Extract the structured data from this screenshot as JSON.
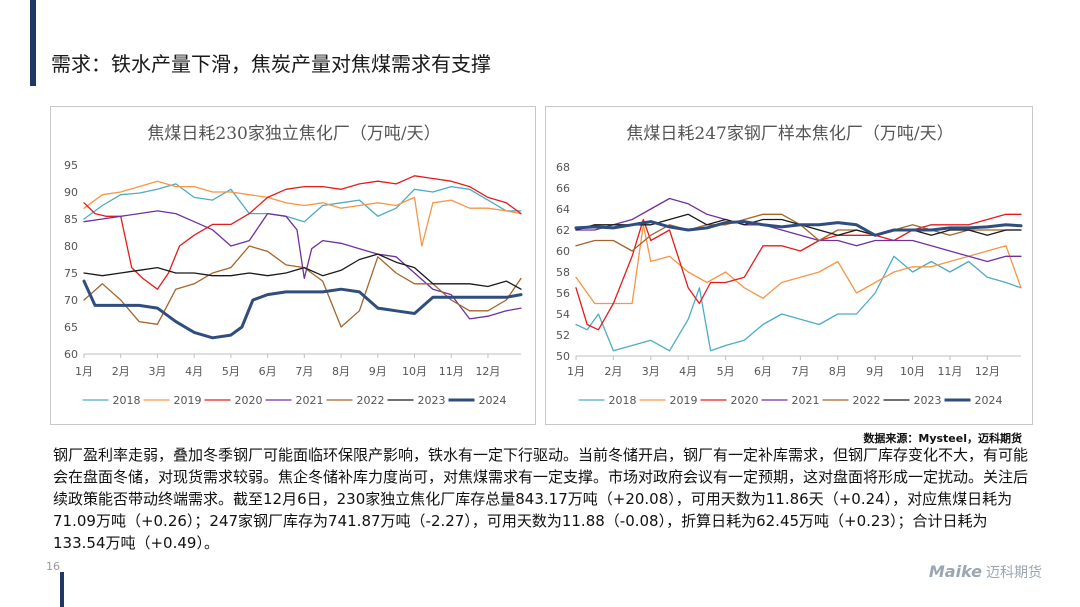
{
  "page": {
    "title": "需求：铁水产量下滑，焦炭产量对焦煤需求有支撑",
    "source": "数据来源：Mysteel，迈科期货",
    "body": "钢厂盈利率走弱，叠加冬季钢厂可能面临环保限产影响，铁水有一定下行驱动。当前冬储开启，钢厂有一定补库需求，但钢厂库存变化不大，有可能会在盘面冬储，对现货需求较弱。焦企冬储补库力度尚可，对焦煤需求有一定支撑。市场对政府会议有一定预期，这对盘面将形成一定扰动。关注后续政策能否带动终端需求。截至12月6日，230家独立焦化厂库存总量843.17万吨（+20.08），可用天数为11.86天（+0.24），对应焦煤日耗为71.09万吨（+0.26）；247家钢厂库存为741.87万吨（-2.27），可用天数为11.88（-0.08），折算日耗为62.45万吨（+0.23）；合计日耗为133.54万吨（+0.49）。",
    "page_number": "16",
    "logo_text": "Maike",
    "logo_cn": "迈科期货"
  },
  "chart_data": [
    {
      "type": "line",
      "title": "焦煤日耗230家独立焦化厂（万吨/天）",
      "xlabel": "",
      "ylabel": "",
      "x_tick_labels": [
        "1月",
        "2月",
        "3月",
        "4月",
        "5月",
        "6月",
        "7月",
        "8月",
        "9月",
        "10月",
        "11月",
        "12月"
      ],
      "xlim": [
        1,
        12.9
      ],
      "ylim": [
        60,
        95
      ],
      "y_ticks": [
        60,
        65,
        70,
        75,
        80,
        85,
        90,
        95
      ],
      "legend": "bottom",
      "series": [
        {
          "name": "2018",
          "color": "#4bacc6",
          "width": 1.3,
          "x": [
            1,
            1.5,
            2,
            2.5,
            3,
            3.5,
            4,
            4.5,
            5,
            5.5,
            6,
            6.5,
            7,
            7.5,
            8,
            8.5,
            9,
            9.5,
            10,
            10.5,
            11,
            11.5,
            12,
            12.5,
            12.9
          ],
          "values": [
            85,
            87.5,
            89.5,
            89.8,
            90.5,
            91.5,
            89,
            88.5,
            90.5,
            86,
            86,
            85.5,
            84.5,
            87.5,
            88,
            88.5,
            85.5,
            87,
            90.5,
            90,
            91,
            90.5,
            88.5,
            86.5,
            86.5
          ]
        },
        {
          "name": "2019",
          "color": "#f79646",
          "width": 1.3,
          "x": [
            1,
            1.5,
            2,
            2.5,
            3,
            3.5,
            4,
            4.5,
            5,
            5.5,
            6,
            6.5,
            7,
            7.5,
            8,
            8.5,
            9,
            9.5,
            10,
            10.2,
            10.5,
            11,
            11.5,
            12,
            12.5,
            12.9
          ],
          "values": [
            87,
            89.5,
            90,
            91,
            92,
            91,
            91,
            90,
            90,
            89.5,
            89,
            88,
            87.5,
            88,
            87,
            87.5,
            88,
            87.5,
            89,
            80,
            88,
            88.5,
            87,
            87,
            86.5,
            86
          ]
        },
        {
          "name": "2020",
          "color": "#e51c1c",
          "width": 1.3,
          "x": [
            1,
            1.3,
            1.6,
            2,
            2.3,
            2.6,
            3,
            3.3,
            3.6,
            4,
            4.5,
            5,
            5.5,
            6,
            6.5,
            7,
            7.5,
            8,
            8.5,
            9,
            9.5,
            10,
            10.5,
            11,
            11.5,
            12,
            12.5,
            12.9
          ],
          "values": [
            88,
            86,
            85.5,
            85.5,
            76,
            74,
            72,
            75,
            80,
            82,
            84,
            84,
            86,
            89,
            90.5,
            91,
            91,
            90.5,
            91.5,
            92,
            91.5,
            93,
            92.5,
            92,
            91,
            89,
            88,
            86
          ]
        },
        {
          "name": "2021",
          "color": "#7030a0",
          "width": 1.3,
          "x": [
            1,
            1.5,
            2,
            2.5,
            3,
            3.5,
            4,
            4.5,
            5,
            5.5,
            6,
            6.5,
            6.8,
            7,
            7.2,
            7.5,
            8,
            8.5,
            9,
            9.5,
            10,
            10.5,
            11,
            11.5,
            12,
            12.5,
            12.9
          ],
          "values": [
            84.5,
            85,
            85.5,
            86,
            86.5,
            86,
            84.5,
            83,
            80,
            81,
            86,
            85.5,
            83,
            74,
            79.5,
            81,
            80.5,
            79.5,
            78.5,
            78,
            75,
            72,
            71,
            66.5,
            67,
            68,
            68.5
          ]
        },
        {
          "name": "2022",
          "color": "#a5642a",
          "width": 1.3,
          "x": [
            1,
            1.5,
            2,
            2.5,
            3,
            3.5,
            4,
            4.5,
            5,
            5.5,
            6,
            6.5,
            7,
            7.5,
            8,
            8.5,
            9,
            9.5,
            10,
            10.5,
            11,
            11.5,
            12,
            12.5,
            12.9
          ],
          "values": [
            70,
            73,
            70,
            66,
            65.5,
            72,
            73,
            75,
            76,
            80,
            79,
            76.5,
            76,
            73.5,
            65,
            68,
            78,
            75,
            73,
            73,
            70,
            68,
            68,
            70,
            74
          ]
        },
        {
          "name": "2023",
          "color": "#1a1a1a",
          "width": 1.3,
          "x": [
            1,
            1.5,
            2,
            2.5,
            3,
            3.5,
            4,
            4.5,
            5,
            5.5,
            6,
            6.5,
            7,
            7.5,
            8,
            8.5,
            9,
            9.5,
            10,
            10.5,
            11,
            11.5,
            12,
            12.5,
            12.9
          ],
          "values": [
            75,
            74.5,
            75,
            75.5,
            76,
            75,
            75,
            74.5,
            74.5,
            75,
            74.5,
            75,
            76,
            74.5,
            75.5,
            77.5,
            78.5,
            77,
            76,
            73,
            73,
            73,
            72.5,
            73.5,
            72
          ]
        },
        {
          "name": "2024",
          "color": "#2f4e7e",
          "width": 3,
          "x": [
            1,
            1.3,
            1.6,
            2,
            2.5,
            3,
            3.5,
            4,
            4.5,
            5,
            5.3,
            5.6,
            6,
            6.5,
            7,
            7.5,
            8,
            8.5,
            9,
            9.5,
            10,
            10.5,
            11,
            11.5,
            12,
            12.5,
            12.9
          ],
          "values": [
            73.5,
            69,
            69,
            69,
            69,
            68.5,
            66,
            64,
            63,
            63.5,
            65,
            70,
            71,
            71.5,
            71.5,
            71.5,
            72,
            71.5,
            68.5,
            68,
            67.5,
            70.5,
            70.5,
            70.5,
            70.5,
            70.5,
            71
          ]
        }
      ]
    },
    {
      "type": "line",
      "title": "焦煤日耗247家钢厂样本焦化厂（万吨/天）",
      "xlabel": "",
      "ylabel": "",
      "x_tick_labels": [
        "1月",
        "2月",
        "3月",
        "4月",
        "5月",
        "6月",
        "7月",
        "8月",
        "9月",
        "10月",
        "11月",
        "12月"
      ],
      "xlim": [
        1,
        12.9
      ],
      "ylim": [
        50,
        68
      ],
      "y_ticks": [
        50,
        52,
        54,
        56,
        58,
        60,
        62,
        64,
        66,
        68
      ],
      "legend": "bottom",
      "series": [
        {
          "name": "2018",
          "color": "#4bacc6",
          "width": 1.3,
          "x": [
            1,
            1.3,
            1.6,
            2,
            2.5,
            3,
            3.5,
            4,
            4.3,
            4.6,
            5,
            5.5,
            6,
            6.5,
            7,
            7.5,
            8,
            8.5,
            9,
            9.5,
            10,
            10.5,
            11,
            11.5,
            12,
            12.5,
            12.9
          ],
          "values": [
            53,
            52.5,
            54,
            50.5,
            51,
            51.5,
            50.5,
            53.5,
            56.5,
            50.5,
            51,
            51.5,
            53,
            54,
            53.5,
            53,
            54,
            54,
            56,
            59.5,
            58,
            59,
            58,
            59,
            57.5,
            57,
            56.5
          ]
        },
        {
          "name": "2019",
          "color": "#f79646",
          "width": 1.3,
          "x": [
            1,
            1.5,
            2,
            2.5,
            2.8,
            3,
            3.5,
            4,
            4.5,
            5,
            5.5,
            6,
            6.5,
            7,
            7.5,
            8,
            8.5,
            9,
            9.5,
            10,
            10.5,
            11,
            11.5,
            12,
            12.5,
            12.9
          ],
          "values": [
            57.5,
            55,
            55,
            55,
            62.5,
            59,
            59.5,
            58,
            57,
            58,
            56.5,
            55.5,
            57,
            57.5,
            58,
            59,
            56,
            57,
            58,
            58.5,
            58.5,
            59,
            59.5,
            60,
            60.5,
            56.5
          ]
        },
        {
          "name": "2020",
          "color": "#e51c1c",
          "width": 1.3,
          "x": [
            1,
            1.3,
            1.6,
            2,
            2.5,
            2.8,
            3,
            3.5,
            4,
            4.3,
            4.6,
            5,
            5.5,
            6,
            6.5,
            7,
            7.5,
            8,
            8.5,
            9,
            9.5,
            10,
            10.5,
            11,
            11.5,
            12,
            12.5,
            12.9
          ],
          "values": [
            56.5,
            53,
            52.5,
            55,
            59.5,
            63,
            61,
            62,
            56.5,
            55,
            57,
            57,
            57.5,
            60.5,
            60.5,
            60,
            61,
            61.5,
            61.5,
            61.5,
            61,
            62,
            62.5,
            62.5,
            62.5,
            63,
            63.5,
            63.5
          ]
        },
        {
          "name": "2021",
          "color": "#7030a0",
          "width": 1.3,
          "x": [
            1,
            1.5,
            2,
            2.5,
            3,
            3.5,
            4,
            4.5,
            5,
            5.5,
            6,
            6.5,
            7,
            7.5,
            8,
            8.5,
            9,
            9.5,
            10,
            10.5,
            11,
            11.5,
            12,
            12.5,
            12.9
          ],
          "values": [
            62,
            62,
            62.5,
            63,
            64,
            65,
            64.5,
            63.5,
            63,
            62.5,
            62.5,
            62,
            61.5,
            61,
            61,
            60.5,
            61,
            61,
            61,
            60.5,
            60,
            59.5,
            59,
            59.5,
            59.5
          ]
        },
        {
          "name": "2022",
          "color": "#a5642a",
          "width": 1.3,
          "x": [
            1,
            1.5,
            2,
            2.5,
            3,
            3.5,
            4,
            4.5,
            5,
            5.5,
            6,
            6.5,
            7,
            7.5,
            8,
            8.5,
            9,
            9.5,
            10,
            10.5,
            11,
            11.5,
            12,
            12.5,
            12.9
          ],
          "values": [
            60.5,
            61,
            61,
            60,
            61.5,
            62.5,
            62,
            62.5,
            62.5,
            63,
            63.5,
            63.5,
            62.5,
            61,
            62,
            62,
            61.5,
            62,
            62.5,
            62,
            61.5,
            62,
            62,
            62,
            62
          ]
        },
        {
          "name": "2023",
          "color": "#1a1a1a",
          "width": 1.3,
          "x": [
            1,
            1.5,
            2,
            2.5,
            3,
            3.5,
            4,
            4.5,
            5,
            5.5,
            6,
            6.5,
            7,
            7.5,
            8,
            8.5,
            9,
            9.5,
            10,
            10.5,
            11,
            11.5,
            12,
            12.5,
            12.9
          ],
          "values": [
            62,
            62.5,
            62.5,
            62.5,
            62.5,
            63,
            63.5,
            62.5,
            63,
            62.5,
            63,
            63,
            62.5,
            62,
            61.5,
            62,
            61.5,
            62,
            62,
            61.5,
            62,
            62,
            61.5,
            62,
            62
          ]
        },
        {
          "name": "2024",
          "color": "#2f4e7e",
          "width": 3,
          "x": [
            1,
            1.5,
            2,
            2.5,
            3,
            3.5,
            4,
            4.5,
            5,
            5.5,
            6,
            6.5,
            7,
            7.5,
            8,
            8.5,
            9,
            9.5,
            10,
            10.5,
            11,
            11.5,
            12,
            12.5,
            12.9
          ],
          "values": [
            62.2,
            62.3,
            62.2,
            62.5,
            62.8,
            62.3,
            62,
            62.2,
            62.7,
            62.8,
            62.5,
            62.3,
            62.5,
            62.5,
            62.7,
            62.5,
            61.5,
            62,
            62,
            62,
            62.2,
            62.2,
            62.3,
            62.5,
            62.4
          ]
        }
      ]
    }
  ]
}
